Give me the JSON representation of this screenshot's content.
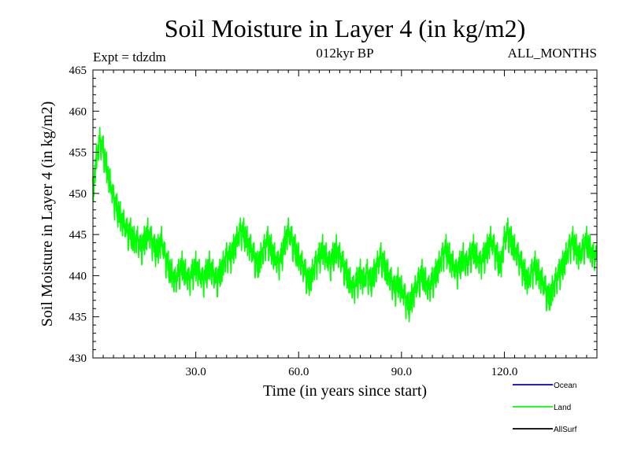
{
  "chart_data": {
    "type": "line",
    "title": "Soil Moisture in Layer 4 (in kg/m2)",
    "experiment": "Expt = tdzdm",
    "subtitle": "012kyr BP",
    "period": "ALL_MONTHS",
    "xlabel": "Time (in years since start)",
    "ylabel": "Soil Moisture in Layer 4 (in kg/m2)",
    "xlim": [
      0,
      147
    ],
    "ylim": [
      430,
      465
    ],
    "x_ticks": [
      30,
      60,
      90,
      120
    ],
    "x_tick_labels": [
      "30.0",
      "60.0",
      "90.0",
      "120.0"
    ],
    "y_ticks": [
      430,
      435,
      440,
      445,
      450,
      455,
      460,
      465
    ],
    "y_tick_labels": [
      "430",
      "435",
      "440",
      "445",
      "450",
      "455",
      "460",
      "465"
    ],
    "legend": [
      {
        "name": "Ocean",
        "color": "#0000cc"
      },
      {
        "name": "Land",
        "color": "#00ff00"
      },
      {
        "name": "AllSurf",
        "color": "#000000"
      }
    ],
    "series": [
      {
        "name": "Land",
        "color": "#00ff00",
        "x_start": 0,
        "x_step": 1,
        "note": "annual-mean envelope read from the plot; monthly oscillation (~±4 kg/m2) is superimposed on these values when drawn",
        "values": [
          452,
          456,
          458,
          457,
          455,
          453,
          451,
          450,
          449,
          448,
          447,
          447,
          446,
          446,
          445,
          446,
          447,
          446,
          445,
          445,
          446,
          444,
          443,
          442,
          441,
          442,
          443,
          442,
          441,
          442,
          443,
          442,
          441,
          442,
          443,
          442,
          441,
          442,
          443,
          444,
          444,
          445,
          446,
          447,
          447,
          446,
          445,
          444,
          443,
          444,
          445,
          446,
          445,
          444,
          443,
          444,
          446,
          447,
          446,
          445,
          444,
          443,
          442,
          441,
          442,
          443,
          444,
          445,
          444,
          443,
          444,
          445,
          444,
          443,
          442,
          441,
          440,
          441,
          442,
          441,
          442,
          441,
          442,
          443,
          444,
          443,
          442,
          441,
          440,
          441,
          440,
          439,
          438,
          439,
          440,
          441,
          442,
          441,
          440,
          441,
          442,
          443,
          444,
          445,
          444,
          443,
          442,
          443,
          444,
          443,
          444,
          445,
          444,
          443,
          444,
          445,
          446,
          445,
          444,
          443,
          446,
          447,
          446,
          445,
          444,
          443,
          442,
          441,
          442,
          443,
          442,
          441,
          440,
          439,
          440,
          441,
          442,
          443,
          444,
          445,
          446,
          445,
          444,
          445,
          446,
          445,
          444
        ]
      }
    ]
  }
}
